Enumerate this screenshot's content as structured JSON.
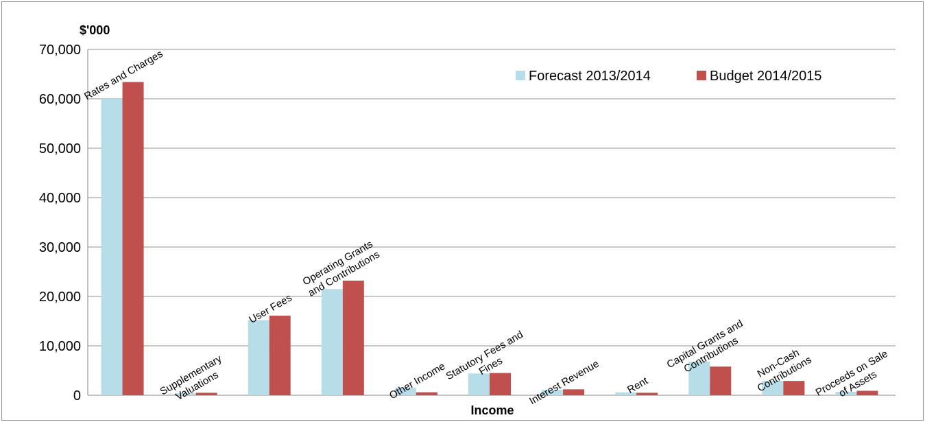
{
  "chart_data": {
    "type": "bar",
    "title": "",
    "ylabel": "$'000",
    "xlabel": "Income",
    "ylim": [
      0,
      70000
    ],
    "yticks": [
      0,
      10000,
      20000,
      30000,
      40000,
      50000,
      60000,
      70000
    ],
    "ytick_labels": [
      "0",
      "10,000",
      "20,000",
      "30,000",
      "40,000",
      "50,000",
      "60,000",
      "70,000"
    ],
    "grid": true,
    "legend_position": "top-right",
    "categories": [
      [
        "Rates and Charges"
      ],
      [
        "Supplementary",
        "Valuations"
      ],
      [
        "User Fees"
      ],
      [
        "Operating Grants",
        "and Contributions"
      ],
      [
        "Other Income"
      ],
      [
        "Statutory Fees and",
        "Fines"
      ],
      [
        "Interest Revenue"
      ],
      [
        "Rent"
      ],
      [
        "Capital Grants and",
        "Contributions"
      ],
      [
        "Non-Cash",
        "Contributions"
      ],
      [
        "Proceeds on Sale",
        "of Assets"
      ]
    ],
    "series": [
      {
        "name": "Forecast 2013/2014",
        "color": "#b7dde8",
        "values": [
          60000,
          400,
          15200,
          21500,
          1500,
          4400,
          1100,
          600,
          6800,
          2900,
          700
        ]
      },
      {
        "name": "Budget 2014/2015",
        "color": "#c0504d",
        "values": [
          63400,
          500,
          16100,
          23200,
          600,
          4500,
          1200,
          500,
          5800,
          2900,
          900
        ]
      }
    ]
  }
}
